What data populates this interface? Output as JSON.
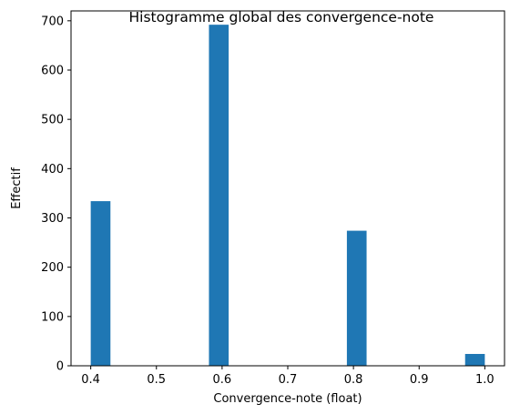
{
  "chart_data": {
    "type": "bar",
    "title": "Histogramme global des convergence-note",
    "xlabel": "Convergence-note (float)",
    "ylabel": "Effectif",
    "xlim": [
      0.37,
      1.03
    ],
    "ylim": [
      0,
      720
    ],
    "xticks": [
      "0.4",
      "0.5",
      "0.6",
      "0.7",
      "0.8",
      "0.9",
      "1.0"
    ],
    "yticks": [
      "0",
      "100",
      "200",
      "300",
      "400",
      "500",
      "600",
      "700"
    ],
    "bin_width": 0.03,
    "bars": [
      {
        "x_start": 0.4,
        "x_end": 0.43,
        "value": 334
      },
      {
        "x_start": 0.58,
        "x_end": 0.61,
        "value": 692
      },
      {
        "x_start": 0.79,
        "x_end": 0.82,
        "value": 274
      },
      {
        "x_start": 0.97,
        "x_end": 1.0,
        "value": 24
      }
    ],
    "bar_color": "#1f77b4",
    "grid": false
  }
}
